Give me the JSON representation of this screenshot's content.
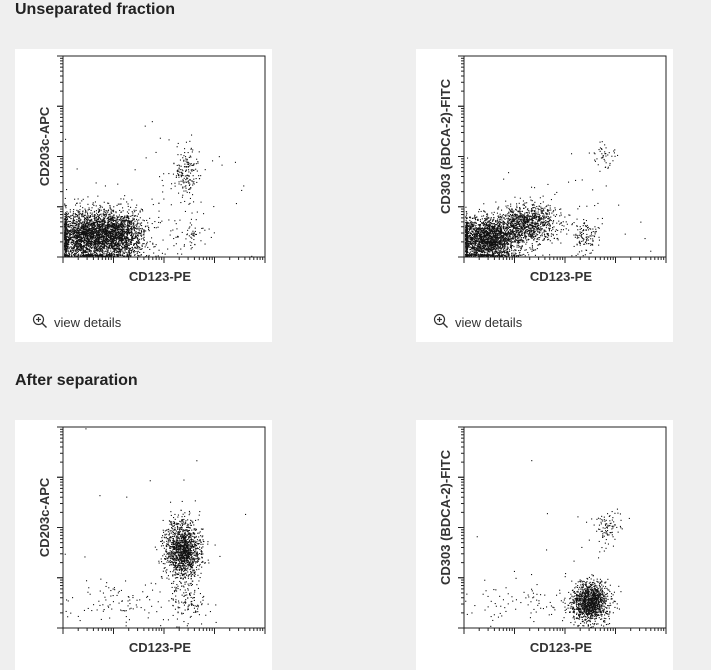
{
  "sections": [
    {
      "title": "Unseparated fraction"
    },
    {
      "title": "After separation"
    }
  ],
  "view_details_label": "view details",
  "icons": {
    "view_details": "zoom-in-icon"
  },
  "chart_data": [
    {
      "type": "scatter",
      "panel": "unseparated-left",
      "xlabel": "CD123-PE",
      "ylabel": "CD203c-APC",
      "xlim": [
        0,
        1
      ],
      "ylim": [
        0,
        1
      ],
      "clusters": [
        {
          "cx": 0.13,
          "cy": 0.11,
          "sx": 0.1,
          "sy": 0.065,
          "n": 2600
        },
        {
          "cx": 0.29,
          "cy": 0.11,
          "sx": 0.06,
          "sy": 0.06,
          "n": 900
        },
        {
          "cx": 0.61,
          "cy": 0.42,
          "sx": 0.03,
          "sy": 0.07,
          "n": 170
        },
        {
          "cx": 0.62,
          "cy": 0.12,
          "sx": 0.05,
          "sy": 0.05,
          "n": 60
        },
        {
          "cx": 0.45,
          "cy": 0.28,
          "sx": 0.25,
          "sy": 0.18,
          "n": 80
        }
      ]
    },
    {
      "type": "scatter",
      "panel": "unseparated-right",
      "xlabel": "CD123-PE",
      "ylabel": "CD303 (BDCA-2)-FITC",
      "xlim": [
        0,
        1
      ],
      "ylim": [
        0,
        1
      ],
      "clusters": [
        {
          "cx": 0.11,
          "cy": 0.09,
          "sx": 0.09,
          "sy": 0.055,
          "n": 2200
        },
        {
          "cx": 0.32,
          "cy": 0.17,
          "sx": 0.07,
          "sy": 0.045,
          "n": 900
        },
        {
          "cx": 0.6,
          "cy": 0.1,
          "sx": 0.04,
          "sy": 0.045,
          "n": 120
        },
        {
          "cx": 0.69,
          "cy": 0.5,
          "sx": 0.03,
          "sy": 0.03,
          "n": 45
        },
        {
          "cx": 0.48,
          "cy": 0.28,
          "sx": 0.22,
          "sy": 0.15,
          "n": 50
        }
      ]
    },
    {
      "type": "scatter",
      "panel": "separated-left",
      "xlabel": "CD123-PE",
      "ylabel": "CD203c-APC",
      "xlim": [
        0,
        1
      ],
      "ylim": [
        0,
        1
      ],
      "clusters": [
        {
          "cx": 0.59,
          "cy": 0.39,
          "sx": 0.045,
          "sy": 0.075,
          "n": 1300
        },
        {
          "cx": 0.62,
          "cy": 0.12,
          "sx": 0.05,
          "sy": 0.05,
          "n": 110
        },
        {
          "cx": 0.25,
          "cy": 0.13,
          "sx": 0.13,
          "sy": 0.05,
          "n": 90
        },
        {
          "cx": 0.5,
          "cy": 0.4,
          "sx": 0.25,
          "sy": 0.25,
          "n": 25
        }
      ]
    },
    {
      "type": "scatter",
      "panel": "separated-right",
      "xlabel": "CD123-PE",
      "ylabel": "CD303 (BDCA-2)-FITC",
      "xlim": [
        0,
        1
      ],
      "ylim": [
        0,
        1
      ],
      "clusters": [
        {
          "cx": 0.62,
          "cy": 0.13,
          "sx": 0.045,
          "sy": 0.05,
          "n": 1250
        },
        {
          "cx": 0.71,
          "cy": 0.5,
          "sx": 0.035,
          "sy": 0.045,
          "n": 90
        },
        {
          "cx": 0.28,
          "cy": 0.13,
          "sx": 0.14,
          "sy": 0.06,
          "n": 80
        },
        {
          "cx": 0.55,
          "cy": 0.35,
          "sx": 0.25,
          "sy": 0.2,
          "n": 20
        }
      ]
    }
  ]
}
